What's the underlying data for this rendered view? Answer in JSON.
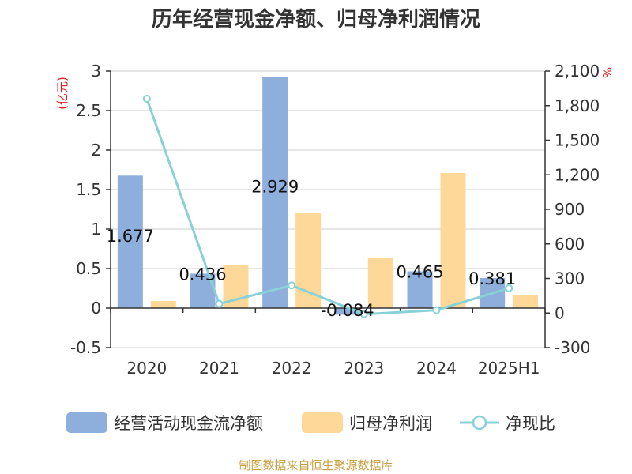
{
  "chart_data": {
    "type": "bar",
    "title": "历年经营现金净额、归母净利润情况",
    "categories": [
      "2020",
      "2021",
      "2022",
      "2023",
      "2024",
      "2025H1"
    ],
    "series": [
      {
        "name": "经营活动现金流净额",
        "type": "bar",
        "axis": "left",
        "color": "#8eaedb",
        "values": [
          1.677,
          0.436,
          2.929,
          -0.084,
          0.465,
          0.381
        ],
        "labels": [
          "1.677",
          "0.436",
          "2.929",
          "-0.084",
          "0.465",
          "0.381"
        ]
      },
      {
        "name": "归母净利润",
        "type": "bar",
        "axis": "left",
        "color": "#fed898",
        "values": [
          0.09,
          0.54,
          1.21,
          0.63,
          1.71,
          0.17
        ]
      },
      {
        "name": "净现比",
        "type": "line",
        "axis": "right",
        "color": "#88d1d6",
        "values": [
          1860,
          80,
          240,
          -10,
          25,
          215
        ]
      }
    ],
    "y_left": {
      "unit_label": "(亿元)",
      "ticks": [
        "3",
        "2.5",
        "2",
        "1.5",
        "1",
        "0.5",
        "0",
        "-0.5"
      ],
      "ylim": [
        -0.5,
        3
      ]
    },
    "y_right": {
      "unit_label": "%",
      "ticks": [
        "2,100",
        "1,800",
        "1,500",
        "1,200",
        "900",
        "600",
        "300",
        "0",
        "-300"
      ],
      "ylim": [
        -300,
        2100
      ]
    },
    "grid": true,
    "legend_position": "bottom"
  },
  "source_text": "制图数据来自恒生聚源数据库"
}
